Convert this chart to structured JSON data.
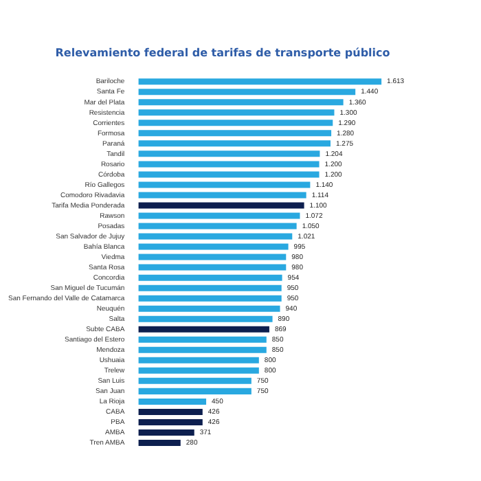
{
  "chart_data": {
    "type": "bar",
    "orientation": "horizontal",
    "title": "Relevamiento federal de tarifas de transporte público",
    "categories": [
      "Bariloche",
      "Santa Fe",
      "Mar del Plata",
      "Resistencia",
      "Corrientes",
      "Formosa",
      "Paraná",
      "Tandil",
      "Rosario",
      "Córdoba",
      "Río Gallegos",
      "Comodoro Rivadavia",
      "Tarifa Media Ponderada",
      "Rawson",
      "Posadas",
      "San Salvador de Jujuy",
      "Bahía Blanca",
      "Viedma",
      "Santa Rosa",
      "Concordia",
      "San Miguel de Tucumán",
      "San Fernando del Valle de Catamarca",
      "Neuquén",
      "Salta",
      "Subte CABA",
      "Santiago del Estero",
      "Mendoza",
      "Ushuaia",
      "Trelew",
      "San Luis",
      "San Juan",
      "La Rioja",
      "CABA",
      "PBA",
      "AMBA",
      "Tren AMBA"
    ],
    "values": [
      1613,
      1440,
      1360,
      1300,
      1290,
      1280,
      1275,
      1204,
      1200,
      1200,
      1140,
      1114,
      1100,
      1072,
      1050,
      1021,
      995,
      980,
      980,
      954,
      950,
      950,
      940,
      890,
      869,
      850,
      850,
      800,
      800,
      750,
      750,
      450,
      426,
      426,
      371,
      280
    ],
    "value_labels": [
      "1.613",
      "1.440",
      "1.360",
      "1.300",
      "1.290",
      "1.280",
      "1.275",
      "1.204",
      "1.200",
      "1.200",
      "1.140",
      "1.114",
      "1.100",
      "1.072",
      "1.050",
      "1.021",
      "995",
      "980",
      "980",
      "954",
      "950",
      "950",
      "940",
      "890",
      "869",
      "850",
      "850",
      "800",
      "800",
      "750",
      "750",
      "450",
      "426",
      "426",
      "371",
      "280"
    ],
    "colors": [
      "#29a8e0",
      "#29a8e0",
      "#29a8e0",
      "#29a8e0",
      "#29a8e0",
      "#29a8e0",
      "#29a8e0",
      "#29a8e0",
      "#29a8e0",
      "#29a8e0",
      "#29a8e0",
      "#29a8e0",
      "#0d1f4f",
      "#29a8e0",
      "#29a8e0",
      "#29a8e0",
      "#29a8e0",
      "#29a8e0",
      "#29a8e0",
      "#29a8e0",
      "#29a8e0",
      "#29a8e0",
      "#29a8e0",
      "#29a8e0",
      "#0d1f4f",
      "#29a8e0",
      "#29a8e0",
      "#29a8e0",
      "#29a8e0",
      "#29a8e0",
      "#29a8e0",
      "#29a8e0",
      "#0d1f4f",
      "#0d1f4f",
      "#0d1f4f",
      "#0d1f4f"
    ],
    "tick_labels": "y",
    "grid": false,
    "legend": false
  }
}
